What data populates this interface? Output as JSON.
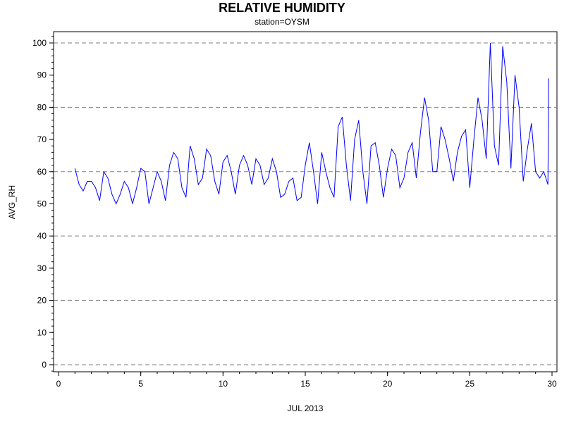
{
  "chart_data": {
    "type": "line",
    "title": "RELATIVE HUMIDITY",
    "subtitle": "station=OYSM",
    "x_label": "JUL 2013",
    "y_label": "AVG_RH",
    "series": [
      {
        "name": "AVG_RH",
        "color": "#0000ff",
        "x": [
          1,
          1.25,
          1.5,
          1.75,
          2,
          2.25,
          2.5,
          2.75,
          3,
          3.25,
          3.5,
          3.75,
          4,
          4.25,
          4.5,
          4.75,
          5,
          5.25,
          5.5,
          5.75,
          6,
          6.25,
          6.5,
          6.75,
          7,
          7.25,
          7.5,
          7.75,
          8,
          8.25,
          8.5,
          8.75,
          9,
          9.25,
          9.5,
          9.75,
          10,
          10.25,
          10.5,
          10.75,
          11,
          11.25,
          11.5,
          11.75,
          12,
          12.25,
          12.5,
          12.75,
          13,
          13.25,
          13.5,
          13.75,
          14,
          14.25,
          14.5,
          14.75,
          15,
          15.25,
          15.5,
          15.75,
          16,
          16.25,
          16.5,
          16.75,
          17,
          17.25,
          17.5,
          17.75,
          18,
          18.25,
          18.5,
          18.75,
          19,
          19.25,
          19.5,
          19.75,
          20,
          20.25,
          20.5,
          20.75,
          21,
          21.25,
          21.5,
          21.75,
          22,
          22.25,
          22.5,
          22.75,
          23,
          23.25,
          23.5,
          23.75,
          24,
          24.25,
          24.5,
          24.75,
          25,
          25.25,
          25.5,
          25.75,
          26,
          26.25,
          26.5,
          26.75,
          27,
          27.25,
          27.5,
          27.75,
          28,
          28.25,
          28.5,
          28.75,
          29,
          29.25,
          29.5,
          29.75,
          29.8
        ],
        "values": [
          61,
          56,
          54,
          57,
          57,
          55,
          51,
          60,
          58,
          53,
          50,
          53,
          57,
          55,
          50,
          55,
          61,
          60,
          50,
          55,
          60,
          57,
          51,
          62,
          66,
          64,
          55,
          52,
          68,
          64,
          56,
          58,
          67,
          65,
          57,
          53,
          63,
          65,
          60,
          53,
          62,
          65,
          62,
          56,
          64,
          62,
          56,
          58,
          64,
          60,
          52,
          53,
          57,
          58,
          51,
          52,
          62,
          69,
          60,
          50,
          66,
          60,
          55,
          52,
          74,
          77,
          62,
          51,
          70,
          76,
          60,
          50,
          68,
          69,
          62,
          52,
          61,
          67,
          65,
          55,
          58,
          66,
          69,
          58,
          72,
          83,
          76,
          60,
          60,
          74,
          70,
          64,
          57,
          66,
          71,
          73,
          55,
          70,
          83,
          76,
          64,
          100,
          68,
          62,
          99,
          88,
          61,
          90,
          80,
          57,
          67,
          75,
          60,
          58,
          60,
          56,
          89
        ]
      }
    ],
    "xlim": [
      -0.3,
      30.3
    ],
    "xticks": [
      0,
      5,
      10,
      15,
      20,
      25,
      30
    ],
    "x_minor_step": 1,
    "ylim": [
      -2.2,
      103.5
    ],
    "yticks": [
      0,
      10,
      20,
      30,
      40,
      50,
      60,
      70,
      80,
      90,
      100
    ],
    "y_minor_step": 2,
    "grid_lines": [
      0,
      20,
      40,
      60,
      80,
      100
    ]
  }
}
